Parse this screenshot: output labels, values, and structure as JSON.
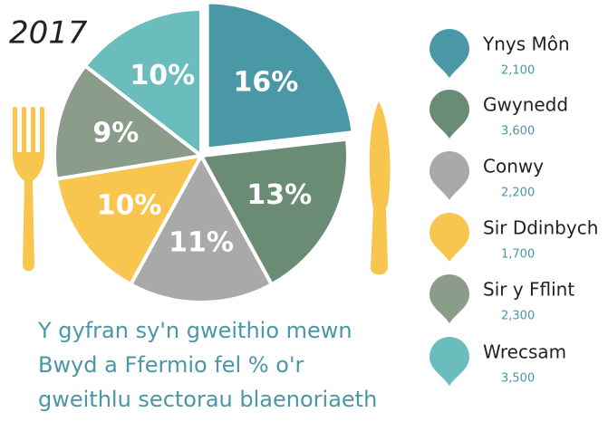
{
  "chart_data": {
    "type": "pie",
    "title": "2017",
    "categories": [
      "Ynys Môn",
      "Gwynedd",
      "Conwy",
      "Sir Ddinbych",
      "Sir y Fflint",
      "Wrecsam"
    ],
    "values": [
      16,
      13,
      11,
      10,
      9,
      10
    ],
    "value_labels": [
      "16%",
      "13%",
      "11%",
      "10%",
      "9%",
      "10%"
    ],
    "colors": [
      "#4a97a5",
      "#6a8b74",
      "#a9a9a9",
      "#f8c54e",
      "#8b9c8b",
      "#6bbdbd"
    ],
    "counts": [
      {
        "value": 2100,
        "label": "2,100"
      },
      {
        "value": 3600,
        "label": "3,600"
      },
      {
        "value": 2200,
        "label": "2,200"
      },
      {
        "value": 1700,
        "label": "1,700"
      },
      {
        "value": 2300,
        "label": "2,300"
      },
      {
        "value": 3500,
        "label": "3,500"
      }
    ],
    "caption": [
      "Y gyfran sy'n gweithio mewn",
      "Bwyd a Ffermio fel % o'r",
      "gweithlu sectorau blaenoriaeth"
    ]
  }
}
